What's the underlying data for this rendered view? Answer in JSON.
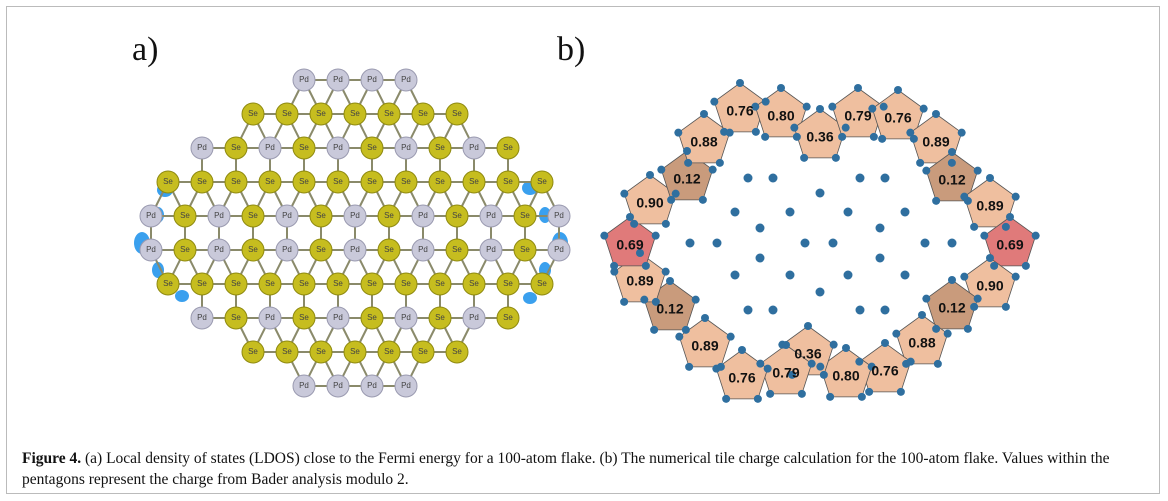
{
  "figure": {
    "panel_a": {
      "label": "a)",
      "lattice": [
        [
          "Pd",
          "Pd",
          "Pd",
          "Pd"
        ],
        [
          "Se",
          "Se",
          "Se",
          "Se",
          "Se",
          "Se",
          "Se"
        ],
        [
          "Pd",
          "Se",
          "Pd",
          "Se",
          "Pd",
          "Se",
          "Pd",
          "Se",
          "Pd",
          "Se"
        ],
        [
          "Se",
          "Se",
          "Se",
          "Se",
          "Se",
          "Se",
          "Se",
          "Se",
          "Se",
          "Se",
          "Se",
          "Se"
        ],
        [
          "Pd",
          "Se",
          "Pd",
          "Se",
          "Pd",
          "Se",
          "Pd",
          "Se",
          "Pd",
          "Se",
          "Pd",
          "Se",
          "Pd"
        ],
        [
          "Pd",
          "Se",
          "Pd",
          "Se",
          "Pd",
          "Se",
          "Pd",
          "Se",
          "Pd",
          "Se",
          "Pd",
          "Se",
          "Pd"
        ],
        [
          "Se",
          "Se",
          "Se",
          "Se",
          "Se",
          "Se",
          "Se",
          "Se",
          "Se",
          "Se",
          "Se",
          "Se"
        ],
        [
          "Pd",
          "Se",
          "Pd",
          "Se",
          "Pd",
          "Se",
          "Pd",
          "Se",
          "Pd",
          "Se"
        ],
        [
          "Se",
          "Se",
          "Se",
          "Se",
          "Se",
          "Se",
          "Se"
        ],
        [
          "Pd",
          "Pd",
          "Pd",
          "Pd"
        ]
      ]
    },
    "panel_b": {
      "label": "b)",
      "tiles": [
        "0.76",
        "0.80",
        "0.36",
        "0.79",
        "0.76",
        "0.89",
        "0.12",
        "0.89",
        "0.69",
        "0.90",
        "0.12",
        "0.88",
        "0.76",
        "0.80",
        "0.36",
        "0.79",
        "0.76",
        "0.89",
        "0.12",
        "0.89",
        "0.69",
        "0.90",
        "0.12",
        "0.88"
      ]
    },
    "caption": {
      "lead": "Figure 4.",
      "text": "(a) Local density of states (LDOS) close to the Fermi energy for a 100-atom flake. (b) The numerical tile charge calculation for the 100-atom flake. Values within the pentagons represent the charge from Bader analysis modulo 2."
    }
  }
}
